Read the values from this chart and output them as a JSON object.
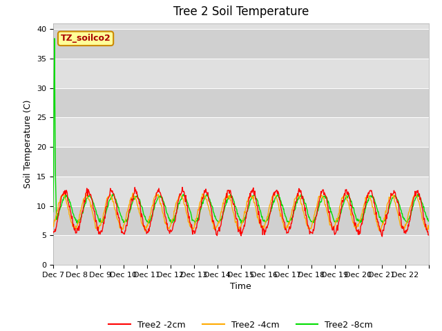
{
  "title": "Tree 2 Soil Temperature",
  "ylabel": "Soil Temperature (C)",
  "xlabel": "Time",
  "annotation_text": "TZ_soilco2",
  "ylim": [
    0,
    41
  ],
  "yticks": [
    0,
    5,
    10,
    15,
    20,
    25,
    30,
    35,
    40
  ],
  "x_labels": [
    "Dec 7",
    "Dec 8",
    "Dec 9",
    "Dec 10",
    "Dec 11",
    "Dec 12",
    "Dec 13",
    "Dec 14",
    "Dec 15",
    "Dec 16",
    "Dec 17",
    "Dec 18",
    "Dec 19",
    "Dec 20",
    "Dec 21",
    "Dec 22"
  ],
  "line_colors": [
    "#ff0000",
    "#ffaa00",
    "#00dd00"
  ],
  "line_labels": [
    "Tree2 -2cm",
    "Tree2 -4cm",
    "Tree2 -8cm"
  ],
  "band_colors": [
    "#e0e0e0",
    "#d0d0d0"
  ],
  "title_fontsize": 12,
  "label_fontsize": 9,
  "tick_fontsize": 8,
  "annotation_bg": "#ffff99",
  "annotation_border": "#cc8800",
  "annotation_text_color": "#aa0000",
  "n_days": 16,
  "spike_value": 38.4,
  "spike_index": 3
}
